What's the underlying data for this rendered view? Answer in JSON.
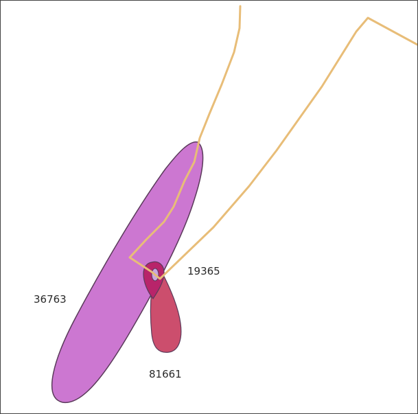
{
  "map": {
    "colors": {
      "background": "#ffffff",
      "border": "#444444",
      "route": "#e8bd78",
      "zone_large_fill": "#cc77d1",
      "zone_medium_fill": "#cc4e6d",
      "zone_small_fill": "#b8246a",
      "zone_outline": "#5a3a5a",
      "label_text": "#2a2a2a"
    },
    "labels": {
      "zone_large": "36763",
      "zone_small": "19365",
      "zone_medium": "81661"
    }
  }
}
